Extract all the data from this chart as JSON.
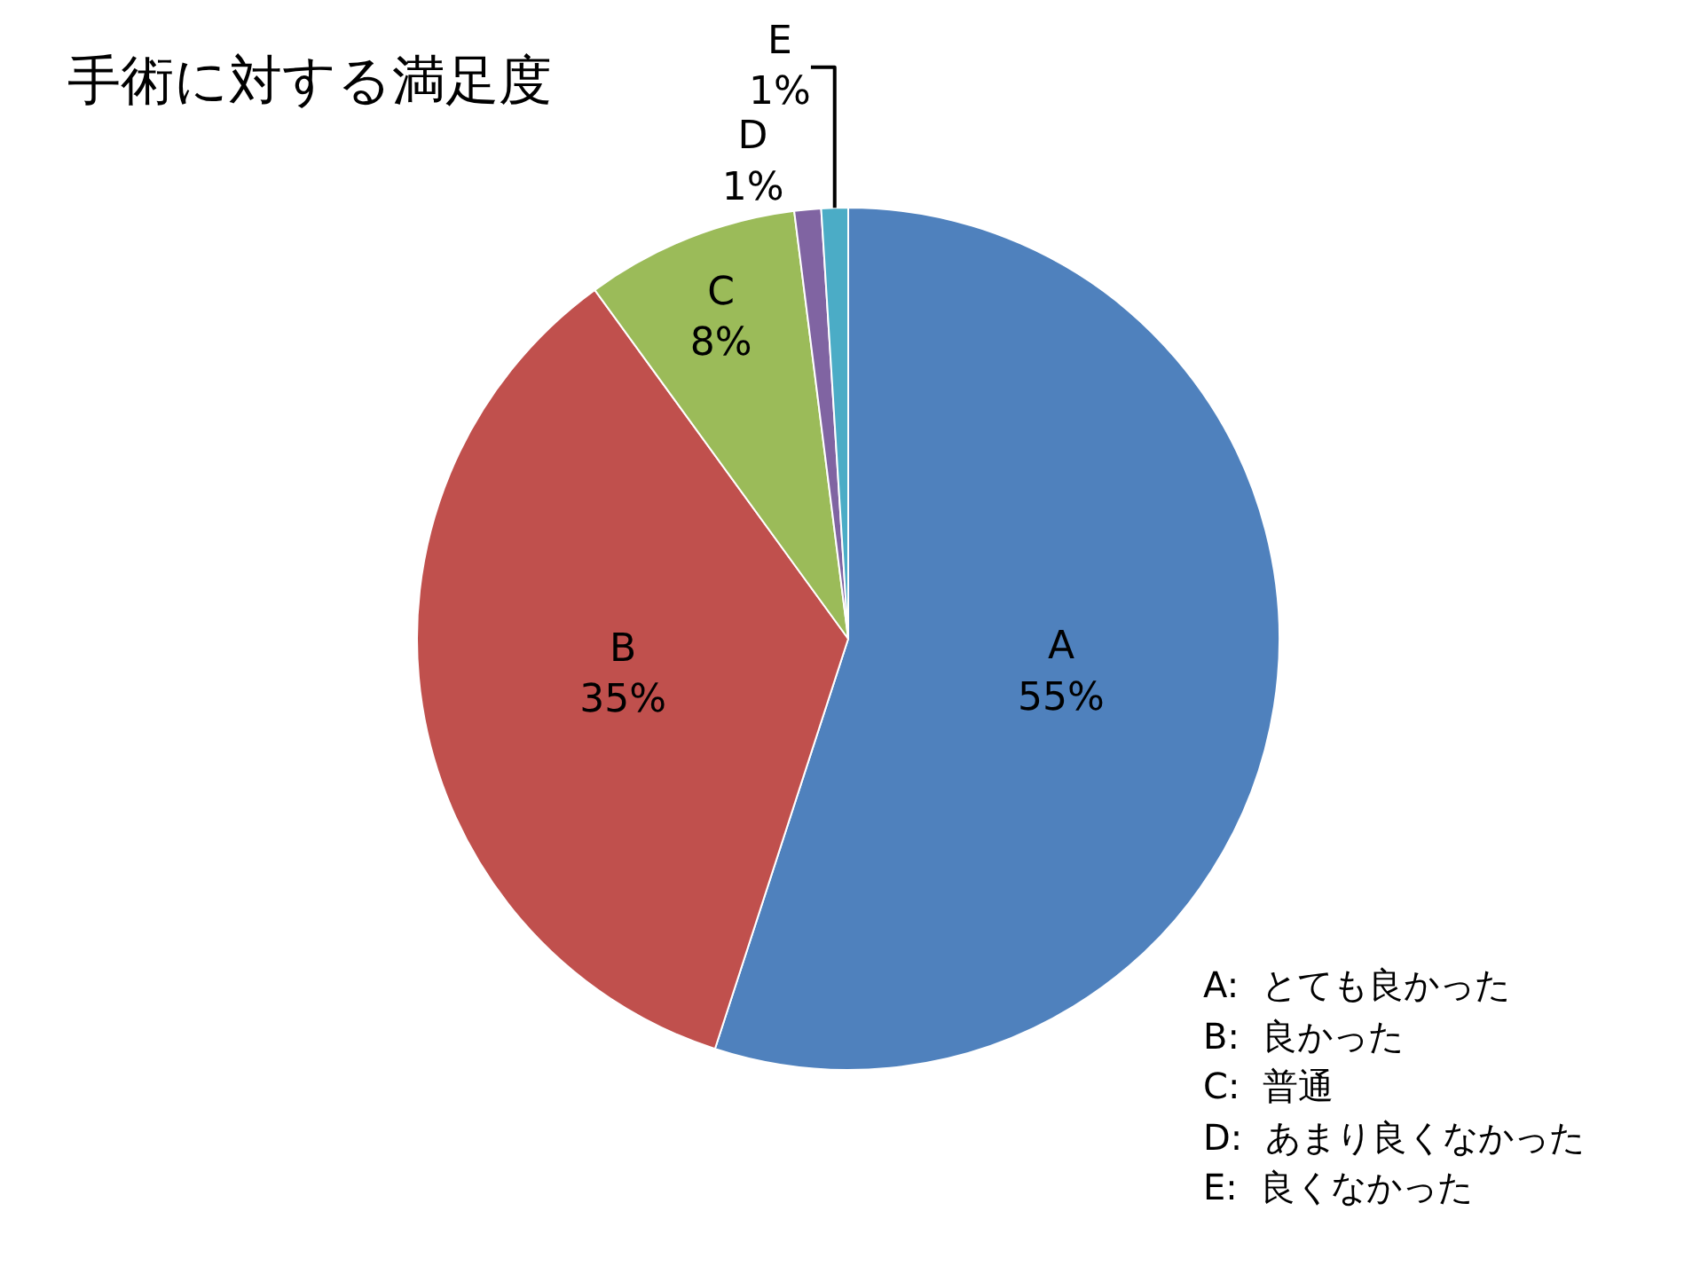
{
  "chart_data": {
    "type": "pie",
    "title": "手術に対する満足度",
    "categories": [
      "A",
      "B",
      "C",
      "D",
      "E"
    ],
    "values": [
      55,
      35,
      8,
      1,
      1
    ],
    "value_labels": [
      "55%",
      "35%",
      "8%",
      "1%",
      "1%"
    ],
    "colors": [
      "#4f81bd",
      "#c0504d",
      "#9bbb59",
      "#8064a2",
      "#4bacc6"
    ],
    "legend": false,
    "annotations": [
      "A:  とても良かった",
      "B:  良かった",
      "C:  普通",
      "D:  あまり良くなかった",
      "E:  良くなかった"
    ]
  }
}
